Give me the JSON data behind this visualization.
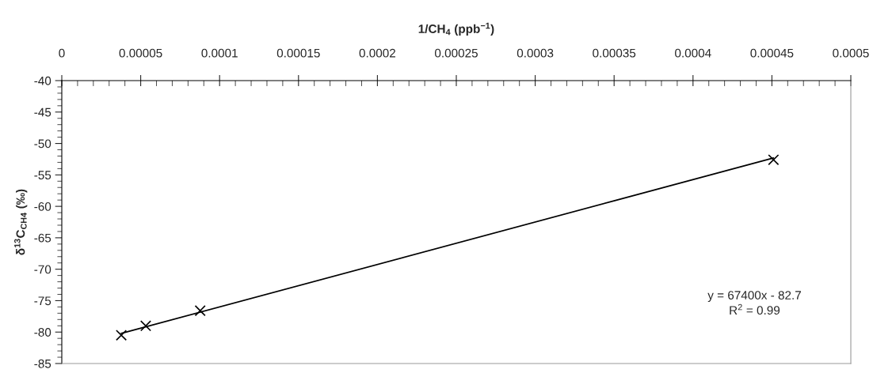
{
  "chart_data": {
    "type": "scatter",
    "xlabel": "1/CH$_{4}$ (ppb$^{−1}$)",
    "ylabel": "δ$^{13}$C$_{CH4}$ (‰)",
    "marker": "cross",
    "grid": false,
    "legend": false,
    "xlim": [
      0,
      0.0005
    ],
    "ylim": [
      -85,
      -40
    ],
    "xticks": [
      {
        "value": 0,
        "label": "0"
      },
      {
        "value": 1e-05,
        "label": null
      },
      {
        "value": 2e-05,
        "label": null
      },
      {
        "value": 3e-05,
        "label": null
      },
      {
        "value": 4e-05,
        "label": null
      },
      {
        "value": 5e-05,
        "label": "0.00005"
      },
      {
        "value": 6e-05,
        "label": null
      },
      {
        "value": 7e-05,
        "label": null
      },
      {
        "value": 8e-05,
        "label": null
      },
      {
        "value": 9e-05,
        "label": null
      },
      {
        "value": 0.0001,
        "label": "0.0001"
      },
      {
        "value": 0.00011,
        "label": null
      },
      {
        "value": 0.00012,
        "label": null
      },
      {
        "value": 0.00013,
        "label": null
      },
      {
        "value": 0.00014,
        "label": null
      },
      {
        "value": 0.00015,
        "label": "0.00015"
      },
      {
        "value": 0.00016,
        "label": null
      },
      {
        "value": 0.00017,
        "label": null
      },
      {
        "value": 0.00018,
        "label": null
      },
      {
        "value": 0.00019,
        "label": null
      },
      {
        "value": 0.0002,
        "label": "0.0002"
      },
      {
        "value": 0.00021,
        "label": null
      },
      {
        "value": 0.00022,
        "label": null
      },
      {
        "value": 0.00023,
        "label": null
      },
      {
        "value": 0.00024,
        "label": null
      },
      {
        "value": 0.00025,
        "label": "0.00025"
      },
      {
        "value": 0.00026,
        "label": null
      },
      {
        "value": 0.00027,
        "label": null
      },
      {
        "value": 0.00028,
        "label": null
      },
      {
        "value": 0.00029,
        "label": null
      },
      {
        "value": 0.0003,
        "label": "0.0003"
      },
      {
        "value": 0.00031,
        "label": null
      },
      {
        "value": 0.00032,
        "label": null
      },
      {
        "value": 0.00033,
        "label": null
      },
      {
        "value": 0.00034,
        "label": null
      },
      {
        "value": 0.00035,
        "label": "0.00035"
      },
      {
        "value": 0.00036,
        "label": null
      },
      {
        "value": 0.00037,
        "label": null
      },
      {
        "value": 0.00038,
        "label": null
      },
      {
        "value": 0.00039,
        "label": null
      },
      {
        "value": 0.0004,
        "label": "0.0004"
      },
      {
        "value": 0.00041,
        "label": null
      },
      {
        "value": 0.00042,
        "label": null
      },
      {
        "value": 0.00043,
        "label": null
      },
      {
        "value": 0.00044,
        "label": null
      },
      {
        "value": 0.00045,
        "label": "0.00045"
      },
      {
        "value": 0.00046,
        "label": null
      },
      {
        "value": 0.00047,
        "label": null
      },
      {
        "value": 0.00048,
        "label": null
      },
      {
        "value": 0.00049,
        "label": null
      },
      {
        "value": 0.0005,
        "label": "0.0005"
      }
    ],
    "yticks": [
      -85,
      {
        "value": -84,
        "label": null
      },
      {
        "value": -83,
        "label": null
      },
      {
        "value": -82,
        "label": null
      },
      {
        "value": -81,
        "label": null
      },
      -80,
      {
        "value": -79,
        "label": null
      },
      {
        "value": -78,
        "label": null
      },
      {
        "value": -77,
        "label": null
      },
      {
        "value": -76,
        "label": null
      },
      -75,
      {
        "value": -74,
        "label": null
      },
      {
        "value": -73,
        "label": null
      },
      {
        "value": -72,
        "label": null
      },
      {
        "value": -71,
        "label": null
      },
      -70,
      {
        "value": -69,
        "label": null
      },
      {
        "value": -68,
        "label": null
      },
      {
        "value": -67,
        "label": null
      },
      {
        "value": -66,
        "label": null
      },
      -65,
      {
        "value": -64,
        "label": null
      },
      {
        "value": -63,
        "label": null
      },
      {
        "value": -62,
        "label": null
      },
      {
        "value": -61,
        "label": null
      },
      -60,
      {
        "value": -59,
        "label": null
      },
      {
        "value": -58,
        "label": null
      },
      {
        "value": -57,
        "label": null
      },
      {
        "value": -56,
        "label": null
      },
      -55,
      {
        "value": -54,
        "label": null
      },
      {
        "value": -53,
        "label": null
      },
      {
        "value": -52,
        "label": null
      },
      {
        "value": -51,
        "label": null
      },
      -50,
      {
        "value": -49,
        "label": null
      },
      {
        "value": -48,
        "label": null
      },
      {
        "value": -47,
        "label": null
      },
      {
        "value": -46,
        "label": null
      },
      -45,
      {
        "value": -44,
        "label": null
      },
      {
        "value": -43,
        "label": null
      },
      {
        "value": -42,
        "label": null
      },
      {
        "value": -41,
        "label": null
      },
      -40
    ],
    "series": [
      {
        "color": "#000000",
        "x": [
          3.77e-05,
          5.32e-05,
          8.77e-05,
          0.000451
        ],
        "values": [
          -80.5,
          -79.0,
          -76.6,
          -52.6
        ]
      },
      {
        "type": "line",
        "color": "#000000",
        "marker": "none",
        "x": [
          3.77e-05,
          0.000451
        ],
        "values": [
          -80.2,
          -52.3
        ]
      }
    ],
    "annotations": [
      "y = 67400x - 82.7",
      "R$^{2}$ = 0.99"
    ]
  }
}
